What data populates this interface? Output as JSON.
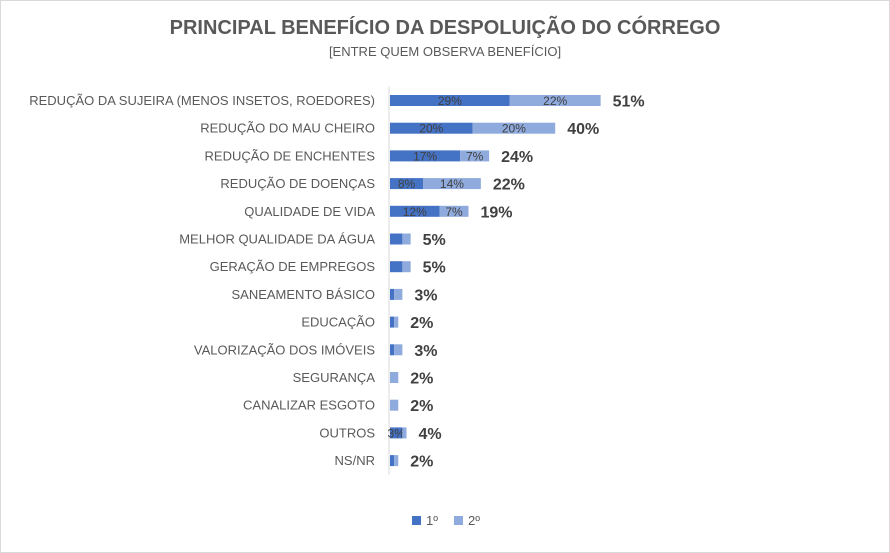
{
  "chart_data": {
    "type": "bar",
    "orientation": "horizontal",
    "stacked": true,
    "title": "PRINCIPAL BENEFÍCIO DA DESPOLUIÇÃO DO CÓRREGO",
    "subtitle": "[ENTRE QUEM OBSERVA BENEFÍCIO]",
    "xlim": [
      0,
      100
    ],
    "grid": false,
    "legend_position": "bottom",
    "categories": [
      "REDUÇÃO DA SUJEIRA (MENOS INSETOS, ROEDORES)",
      "REDUÇÃO DO MAU CHEIRO",
      "REDUÇÃO DE ENCHENTES",
      "REDUÇÃO DE DOENÇAS",
      "QUALIDADE DE VIDA",
      "MELHOR QUALIDADE DA ÁGUA",
      "GERAÇÃO DE EMPREGOS",
      "SANEAMENTO BÁSICO",
      "EDUCAÇÃO",
      "VALORIZAÇÃO DOS IMÓVEIS",
      "SEGURANÇA",
      "CANALIZAR ESGOTO",
      "OUTROS",
      "NS/NR"
    ],
    "series": [
      {
        "name": "1º",
        "color": "#4472c4",
        "values": [
          29,
          20,
          17,
          8,
          12,
          3,
          3,
          1,
          1,
          1,
          0,
          0,
          3,
          1
        ],
        "labels": [
          "29%",
          "20%",
          "17%",
          "8%",
          "12%",
          "",
          "",
          "",
          "",
          "",
          "",
          "",
          "3%",
          ""
        ]
      },
      {
        "name": "2º",
        "color": "#8faadc",
        "values": [
          22,
          20,
          7,
          14,
          7,
          2,
          2,
          2,
          1,
          2,
          2,
          2,
          1,
          1
        ],
        "labels": [
          "22%",
          "20%",
          "7%",
          "14%",
          "7%",
          "",
          "",
          "",
          "",
          "",
          "",
          "",
          "",
          ""
        ]
      }
    ],
    "totals": [
      "51%",
      "40%",
      "24%",
      "22%",
      "19%",
      "5%",
      "5%",
      "3%",
      "2%",
      "3%",
      "2%",
      "2%",
      "4%",
      "2%"
    ]
  }
}
